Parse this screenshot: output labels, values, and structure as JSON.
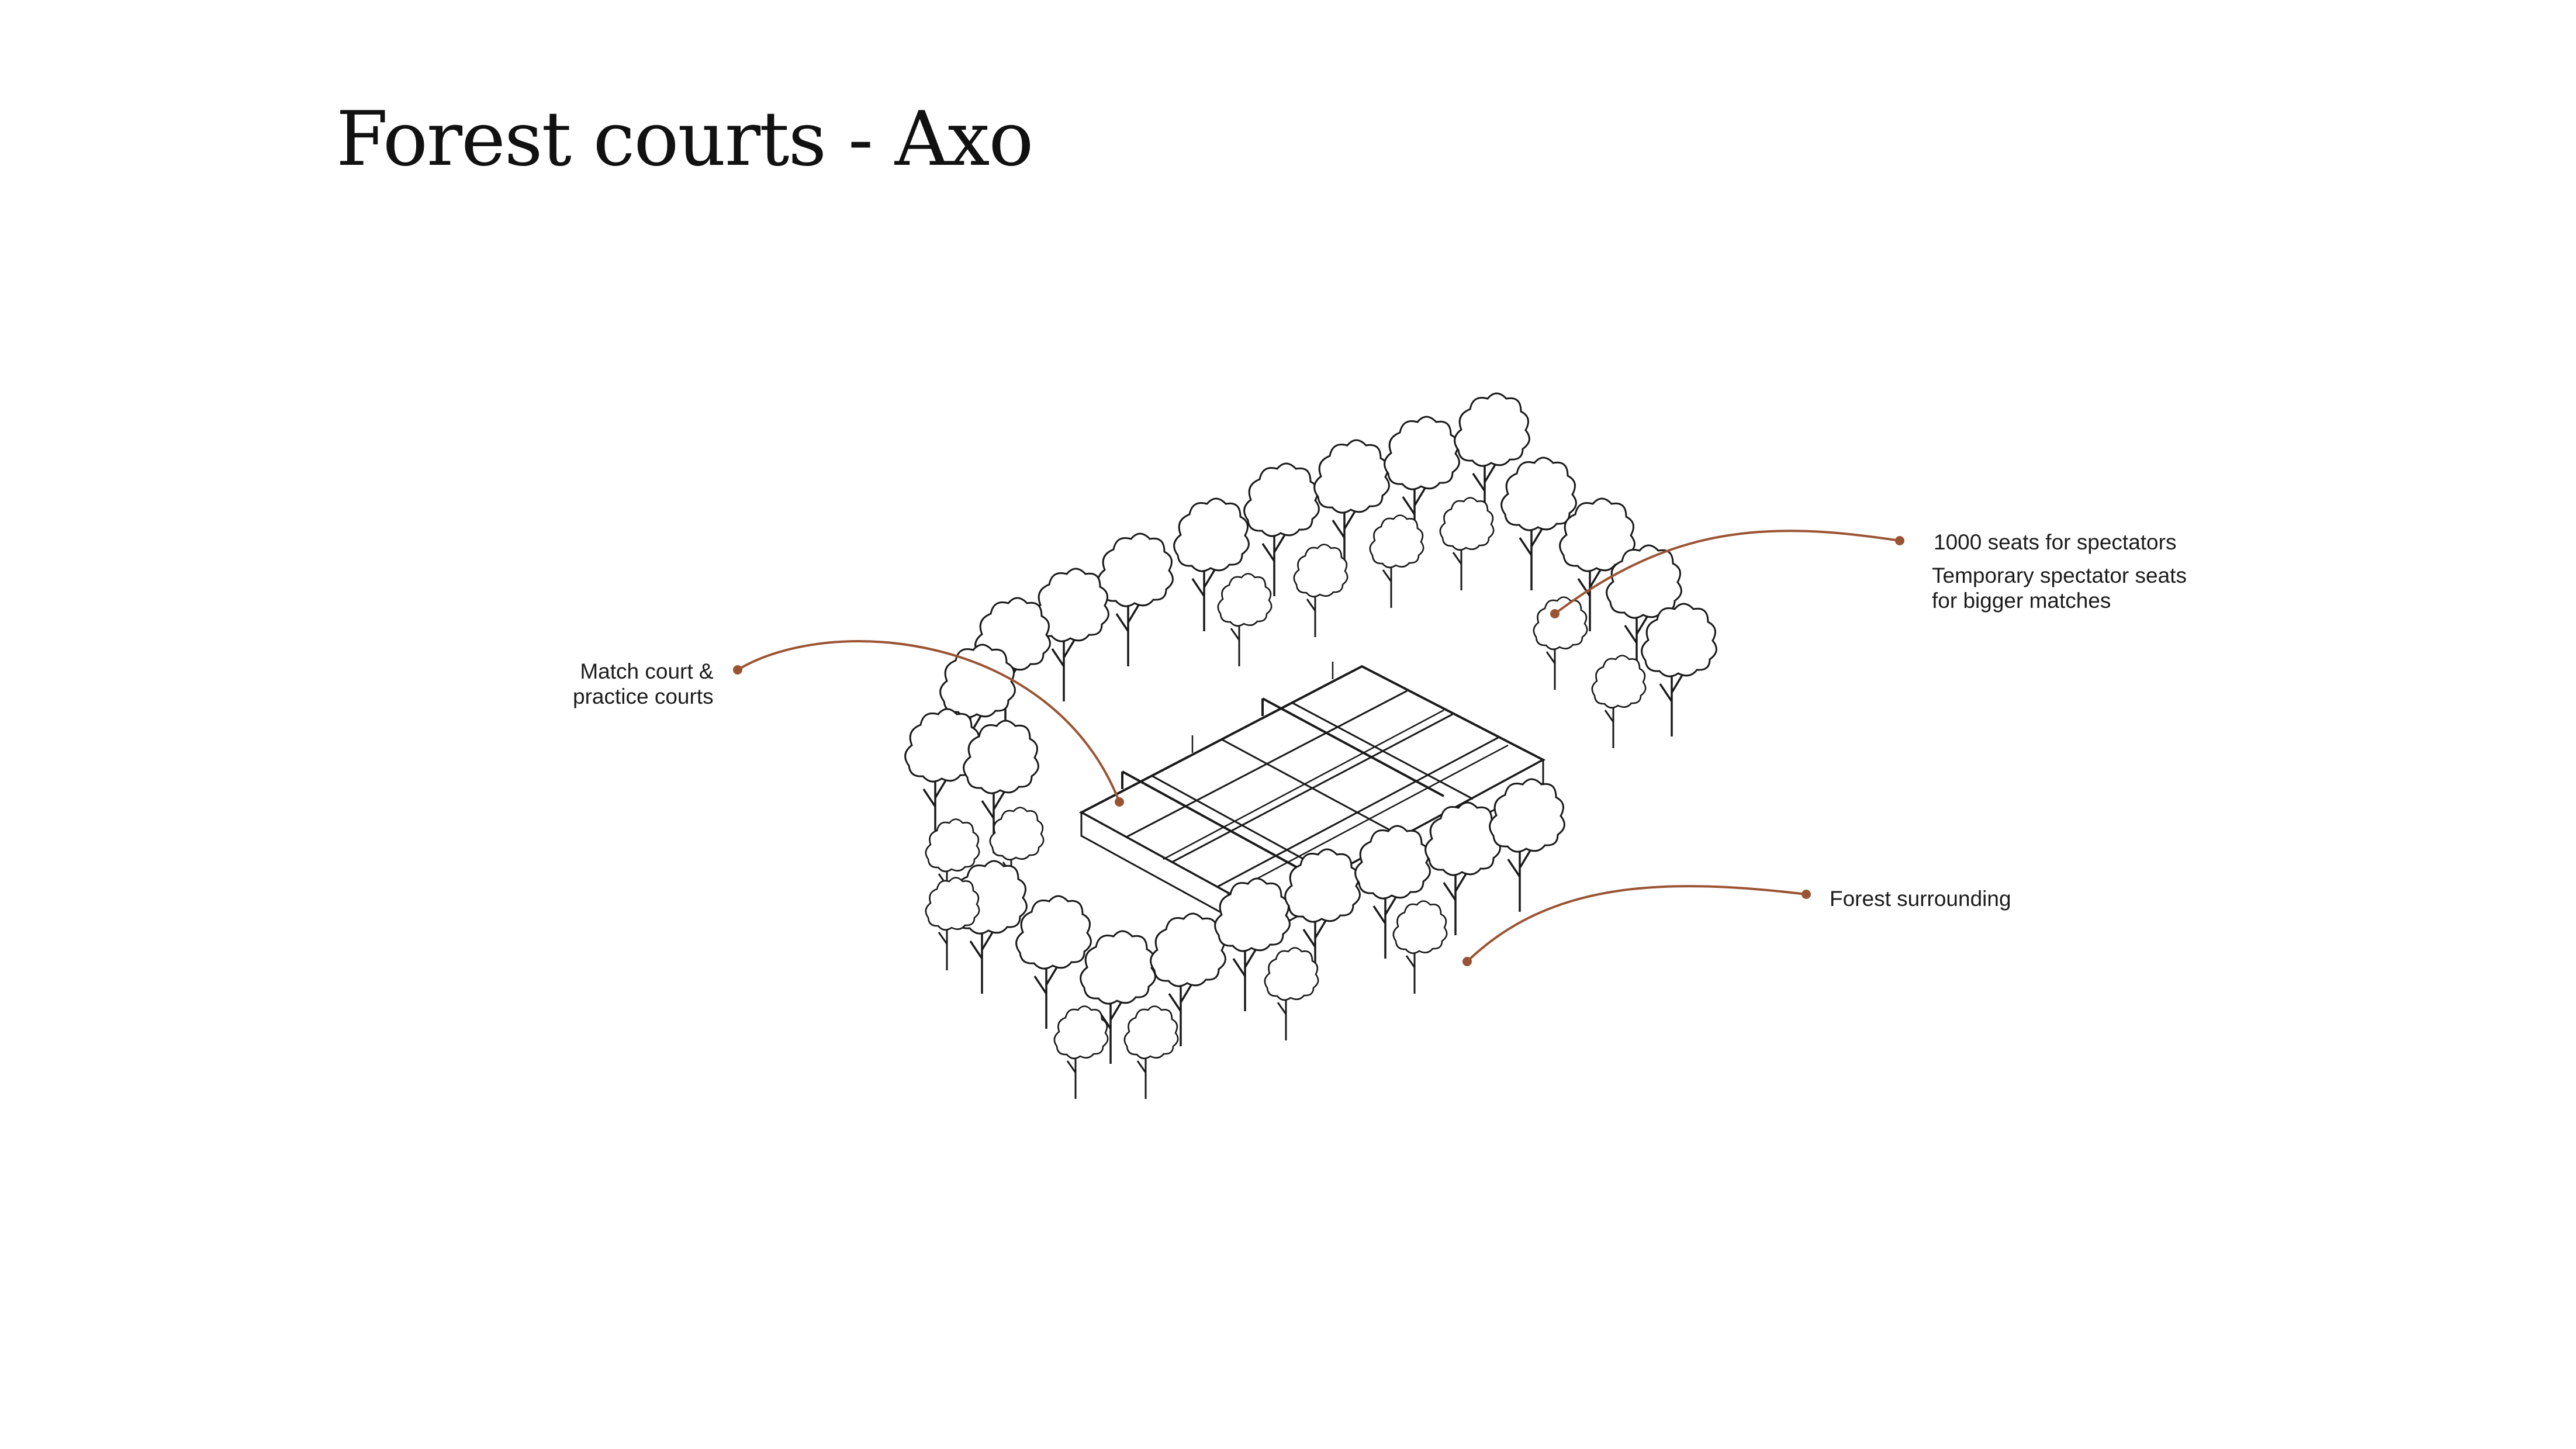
{
  "title": "Forest courts - Axo",
  "accent_color": "#9b5433",
  "sketch_color": "#1a1a1a",
  "annotations": {
    "seats": "1000 seats for spectators",
    "temporary": {
      "line1": "Temporary spectator seats",
      "line2": "for bigger matches"
    },
    "courts": {
      "line1": "Match court &",
      "line2": "practice courts"
    },
    "forest": "Forest surrounding"
  }
}
